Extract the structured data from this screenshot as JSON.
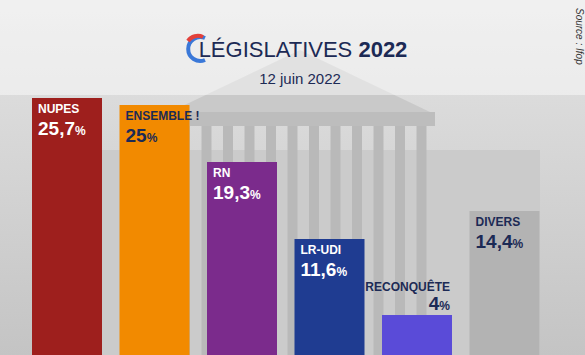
{
  "chart_data": {
    "type": "bar",
    "title": "LÉGISLATIVES 2022",
    "subtitle": "12 juin 2022",
    "source": "Source : Ifop",
    "categories": [
      "NUPES",
      "ENSEMBLE !",
      "RN",
      "LR-UDI",
      "RECONQUÊTE",
      "DIVERS"
    ],
    "values": [
      25.7,
      25,
      19.3,
      11.6,
      4,
      14.4
    ],
    "value_labels": [
      "25,7%",
      "25%",
      "19,3%",
      "11,6%",
      "4%",
      "14,4%"
    ],
    "colors": [
      "#9e1f1d",
      "#f28a00",
      "#7b2b8c",
      "#1f3c91",
      "#5a4bd8",
      "#b3b3b3"
    ],
    "ylim": [
      0,
      35
    ],
    "tick_labels": false,
    "data_labels": true
  }
}
